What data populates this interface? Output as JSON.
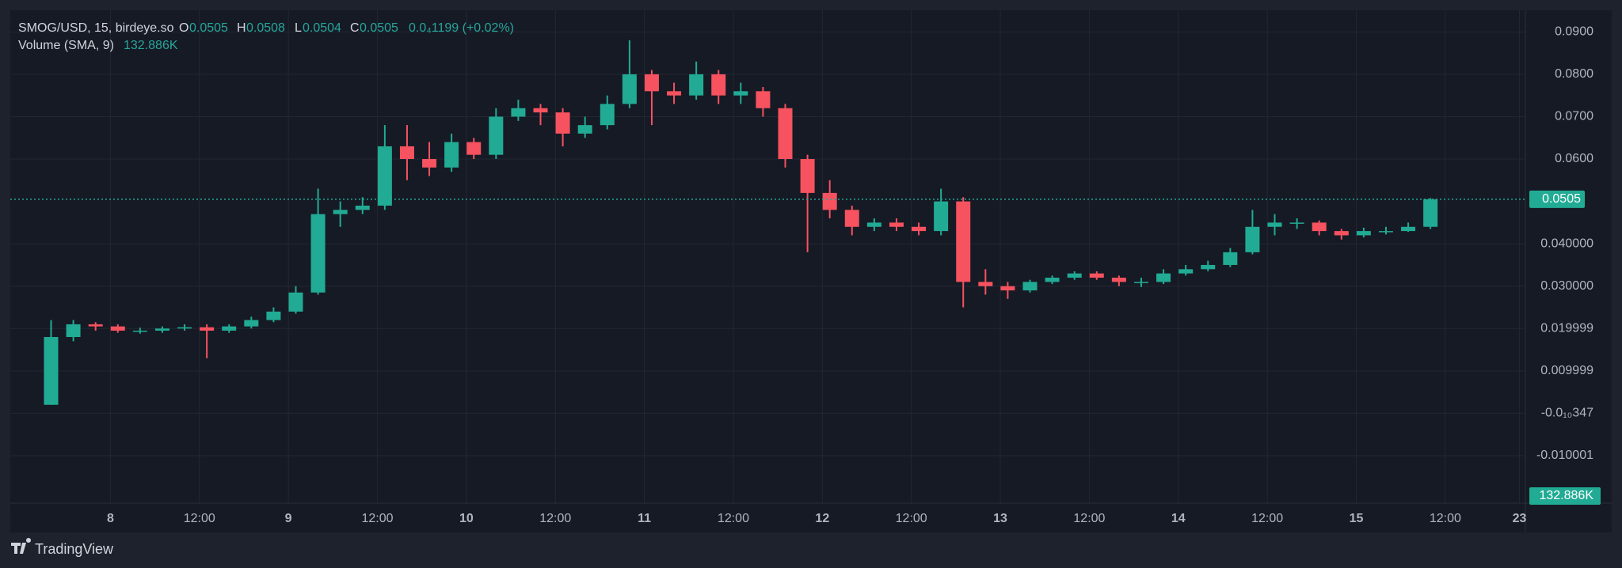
{
  "chart_data": {
    "type": "candlestick",
    "legend": {
      "symbol": "SMOG/USD, 15, birdeye.so",
      "o": "O",
      "open": "0.0505",
      "h": "H",
      "high": "0.0508",
      "l": "L",
      "low": "0.0504",
      "c": "C",
      "close": "0.0505",
      "change": "0.0₄1199 (+0.02%)",
      "volume": "Volume (SMA, 9)",
      "volume_value": "132.886K"
    },
    "brand": "TradingView",
    "last_price": 0.0505,
    "up_color": "#22ab94",
    "down_color": "#f7525f",
    "x": [
      -8,
      -5,
      -2,
      1,
      4,
      7,
      10,
      13,
      16,
      19,
      22,
      25,
      28,
      31,
      34,
      37,
      40,
      43,
      46,
      49,
      52,
      55,
      58,
      61,
      64,
      67,
      70,
      73,
      76,
      79,
      82,
      85,
      88,
      91,
      94,
      97,
      100,
      103,
      106,
      109,
      112,
      115,
      118,
      121,
      124,
      127,
      130,
      133,
      136,
      139,
      142,
      145,
      148,
      151,
      154,
      157,
      160,
      163,
      166,
      169,
      172,
      175,
      178
    ],
    "open": [
      0.002,
      0.018,
      0.021,
      0.0205,
      0.0195,
      0.0195,
      0.02,
      0.0203,
      0.0195,
      0.0205,
      0.022,
      0.024,
      0.0285,
      0.047,
      0.048,
      0.049,
      0.063,
      0.06,
      0.058,
      0.064,
      0.061,
      0.07,
      0.072,
      0.071,
      0.066,
      0.068,
      0.073,
      0.08,
      0.076,
      0.075,
      0.08,
      0.075,
      0.076,
      0.072,
      0.06,
      0.052,
      0.048,
      0.044,
      0.045,
      0.044,
      0.043,
      0.05,
      0.031,
      0.03,
      0.029,
      0.031,
      0.032,
      0.033,
      0.032,
      0.031,
      0.031,
      0.033,
      0.034,
      0.035,
      0.038,
      0.044,
      0.045,
      0.045,
      0.043,
      0.042,
      0.043,
      0.043,
      0.044
    ],
    "high": [
      0.022,
      0.022,
      0.0215,
      0.021,
      0.0202,
      0.0205,
      0.021,
      0.021,
      0.021,
      0.0228,
      0.025,
      0.03,
      0.053,
      0.05,
      0.051,
      0.068,
      0.068,
      0.064,
      0.066,
      0.065,
      0.072,
      0.074,
      0.073,
      0.072,
      0.07,
      0.075,
      0.088,
      0.081,
      0.078,
      0.083,
      0.081,
      0.078,
      0.077,
      0.073,
      0.061,
      0.055,
      0.049,
      0.046,
      0.046,
      0.045,
      0.053,
      0.051,
      0.034,
      0.031,
      0.0315,
      0.0325,
      0.0335,
      0.0335,
      0.0325,
      0.032,
      0.034,
      0.035,
      0.036,
      0.039,
      0.048,
      0.047,
      0.046,
      0.0455,
      0.0435,
      0.0438,
      0.044,
      0.045,
      0.0508
    ],
    "low": [
      0.002,
      0.017,
      0.0195,
      0.019,
      0.0188,
      0.019,
      0.0195,
      0.013,
      0.019,
      0.02,
      0.0215,
      0.0235,
      0.028,
      0.044,
      0.047,
      0.048,
      0.055,
      0.056,
      0.057,
      0.06,
      0.06,
      0.069,
      0.068,
      0.063,
      0.065,
      0.067,
      0.072,
      0.068,
      0.073,
      0.074,
      0.073,
      0.073,
      0.07,
      0.058,
      0.038,
      0.046,
      0.042,
      0.043,
      0.043,
      0.042,
      0.042,
      0.025,
      0.028,
      0.027,
      0.0285,
      0.0305,
      0.0315,
      0.0315,
      0.03,
      0.0298,
      0.0305,
      0.0325,
      0.0335,
      0.0345,
      0.0375,
      0.042,
      0.0435,
      0.042,
      0.041,
      0.0415,
      0.0422,
      0.0428,
      0.0435
    ],
    "close": [
      0.018,
      0.021,
      0.0205,
      0.0195,
      0.0195,
      0.02,
      0.0203,
      0.0195,
      0.0205,
      0.022,
      0.024,
      0.0285,
      0.047,
      0.048,
      0.049,
      0.063,
      0.06,
      0.058,
      0.064,
      0.061,
      0.07,
      0.072,
      0.071,
      0.066,
      0.068,
      0.073,
      0.08,
      0.076,
      0.075,
      0.08,
      0.075,
      0.076,
      0.072,
      0.06,
      0.052,
      0.048,
      0.044,
      0.045,
      0.044,
      0.043,
      0.05,
      0.031,
      0.03,
      0.029,
      0.031,
      0.032,
      0.033,
      0.032,
      0.031,
      0.031,
      0.033,
      0.034,
      0.035,
      0.038,
      0.044,
      0.045,
      0.045,
      0.043,
      0.042,
      0.043,
      0.043,
      0.044,
      0.0505
    ],
    "xlim": [
      -13.5,
      190.8
    ],
    "xticks": [
      {
        "value": 0,
        "label": "8"
      },
      {
        "value": 12,
        "label": "12:00"
      },
      {
        "value": 24,
        "label": "9"
      },
      {
        "value": 36,
        "label": "12:00"
      },
      {
        "value": 48,
        "label": "10"
      },
      {
        "value": 60,
        "label": "12:00"
      },
      {
        "value": 72,
        "label": "11"
      },
      {
        "value": 84,
        "label": "12:00"
      },
      {
        "value": 96,
        "label": "12"
      },
      {
        "value": 108,
        "label": "12:00"
      },
      {
        "value": 120,
        "label": "13"
      },
      {
        "value": 132,
        "label": "12:00"
      },
      {
        "value": 144,
        "label": "14"
      },
      {
        "value": 156,
        "label": "12:00"
      },
      {
        "value": 168,
        "label": "15"
      },
      {
        "value": 180,
        "label": "12:00"
      },
      {
        "value": 190,
        "label": "23"
      }
    ],
    "ylim": [
      -0.0212,
      0.0951
    ],
    "yticks": [
      {
        "value": 0.09,
        "label": "0.0900"
      },
      {
        "value": 0.08,
        "label": "0.0800"
      },
      {
        "value": 0.07,
        "label": "0.0700"
      },
      {
        "value": 0.06,
        "label": "0.0600"
      },
      {
        "value": 0.04,
        "label": "0.040000"
      },
      {
        "value": 0.03,
        "label": "0.030000"
      },
      {
        "value": 0.02,
        "label": "0.019999"
      },
      {
        "value": 0.01,
        "label": "0.009999"
      },
      {
        "value": 0,
        "label": "-0.0₁₀347"
      },
      {
        "value": -0.01,
        "label": "-0.010001"
      }
    ],
    "grid": true
  }
}
